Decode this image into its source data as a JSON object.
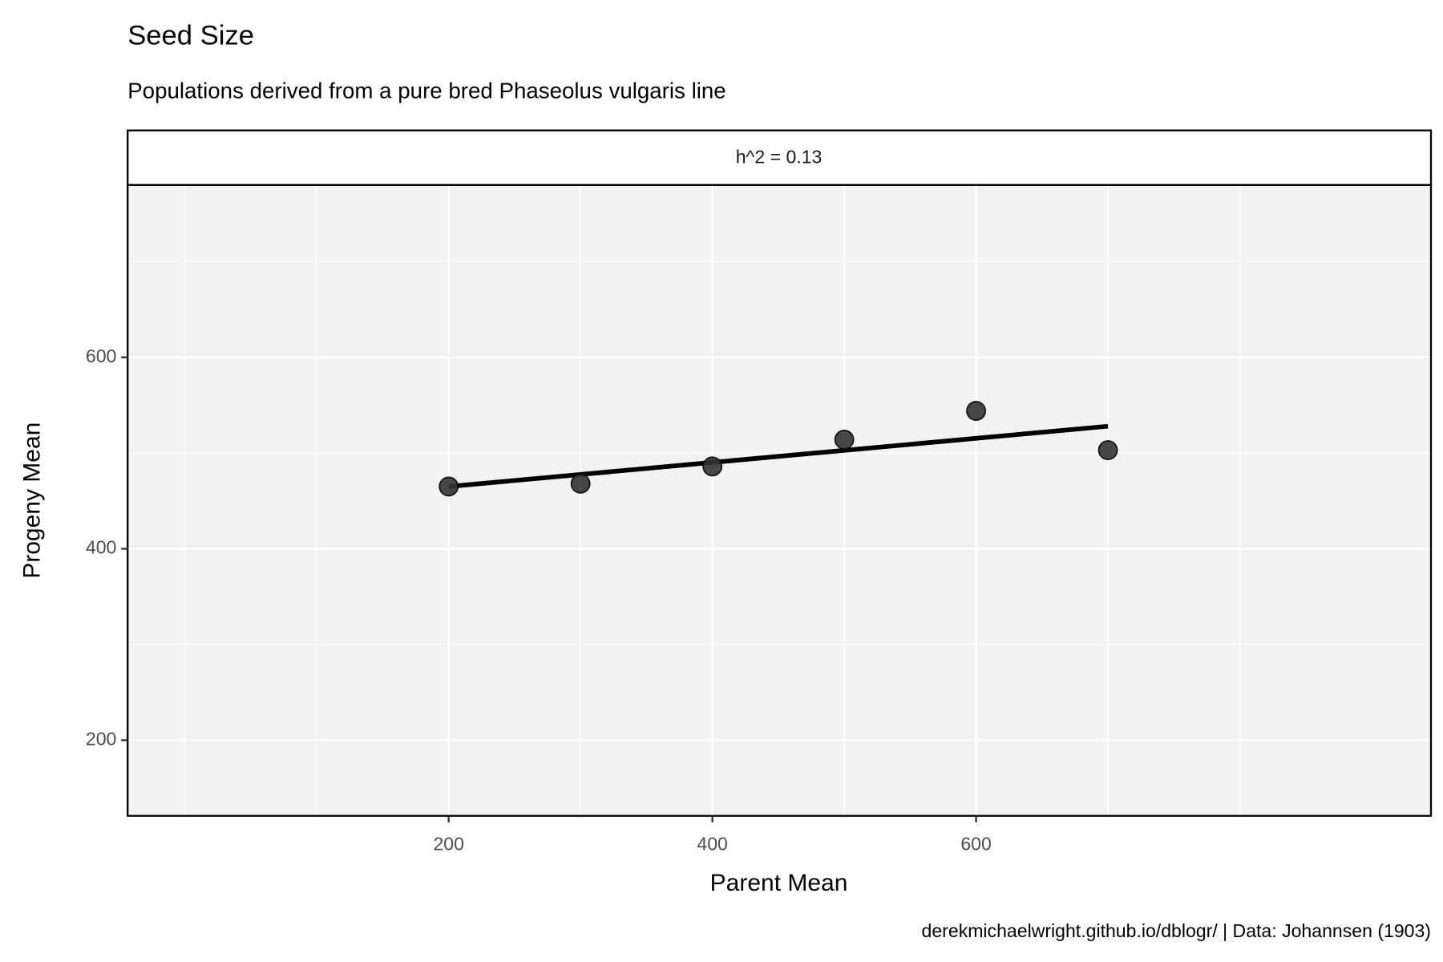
{
  "chart_data": {
    "type": "scatter",
    "title": "Seed Size",
    "subtitle": "Populations derived from a pure bred Phaseolus vulgaris line",
    "facet_label": "h^2 = 0.13",
    "x_label": "Parent Mean",
    "y_label": "Progeny Mean",
    "caption": "derekmichaelwright.github.io/dblogr/ | Data: Johannsen (1903)",
    "x": [
      200,
      300,
      400,
      500,
      600,
      700
    ],
    "values": [
      465,
      468,
      486,
      514,
      544,
      503
    ],
    "color": "#333333",
    "fit": {
      "x": [
        200,
        700
      ],
      "y": [
        465,
        528
      ],
      "color": "#000000"
    },
    "xlim": [
      -43.5,
      945
    ],
    "ylim": [
      121,
      780
    ],
    "xticks": [
      200,
      400,
      600
    ],
    "yticks": [
      200,
      400,
      600
    ],
    "xminor": [
      0,
      100,
      300,
      500,
      700,
      800
    ],
    "yminor": [
      300,
      500,
      700
    ],
    "grid": true
  }
}
